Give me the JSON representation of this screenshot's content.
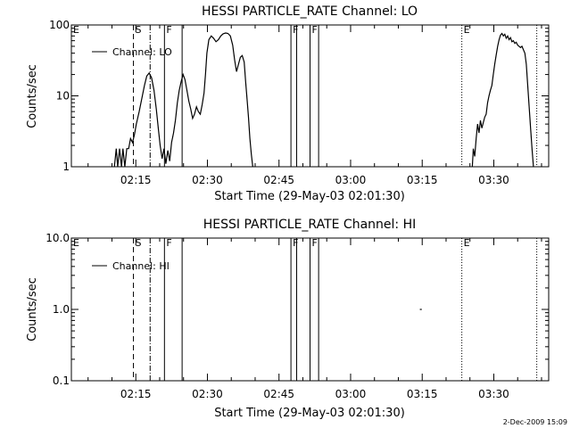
{
  "chart_data": [
    {
      "type": "line",
      "title": "HESSI PARTICLE_RATE Channel: LO",
      "xlabel": "Start Time (29-May-03 02:01:30)",
      "ylabel": "Counts/sec",
      "yscale": "log",
      "ylim": [
        1,
        100
      ],
      "yticks": [
        "1",
        "10",
        "100"
      ],
      "xlim_minutes": [
        0,
        100
      ],
      "xticks": [
        "02:15",
        "02:30",
        "02:45",
        "03:00",
        "03:15",
        "03:30"
      ],
      "legend": "upper-left",
      "series": [
        {
          "name": "Channel: LO",
          "points": [
            [
              9.0,
              1.0
            ],
            [
              9.4,
              1.8
            ],
            [
              9.7,
              1.0
            ],
            [
              10.1,
              1.8
            ],
            [
              10.5,
              1.0
            ],
            [
              10.8,
              1.8
            ],
            [
              11.2,
              1.0
            ],
            [
              11.6,
              1.8
            ],
            [
              12.0,
              1.8
            ],
            [
              12.4,
              2.5
            ],
            [
              12.8,
              2.2
            ],
            [
              13.2,
              2.8
            ],
            [
              13.6,
              4.0
            ],
            [
              14.2,
              6.0
            ],
            [
              14.8,
              9.5
            ],
            [
              15.3,
              14
            ],
            [
              15.8,
              19
            ],
            [
              16.3,
              21
            ],
            [
              16.8,
              18
            ],
            [
              17.3,
              12
            ],
            [
              17.8,
              6.5
            ],
            [
              18.2,
              3.5
            ],
            [
              18.6,
              2.0
            ],
            [
              19.0,
              1.3
            ],
            [
              19.4,
              1.8
            ],
            [
              19.8,
              1.1
            ],
            [
              20.2,
              1.7
            ],
            [
              20.6,
              1.2
            ],
            [
              21.0,
              2.2
            ],
            [
              21.4,
              3.0
            ],
            [
              21.8,
              4.5
            ],
            [
              22.2,
              8.0
            ],
            [
              22.6,
              12
            ],
            [
              23.0,
              16
            ],
            [
              23.4,
              20
            ],
            [
              23.8,
              17
            ],
            [
              24.2,
              12
            ],
            [
              24.6,
              8.5
            ],
            [
              25.0,
              6.5
            ],
            [
              25.4,
              4.8
            ],
            [
              25.8,
              5.5
            ],
            [
              26.2,
              7.0
            ],
            [
              26.6,
              6.0
            ],
            [
              27.0,
              5.5
            ],
            [
              27.4,
              7.5
            ],
            [
              27.8,
              11
            ],
            [
              28.1,
              20
            ],
            [
              28.4,
              40
            ],
            [
              28.8,
              62
            ],
            [
              29.3,
              70
            ],
            [
              29.8,
              65
            ],
            [
              30.3,
              58
            ],
            [
              30.8,
              62
            ],
            [
              31.3,
              70
            ],
            [
              31.8,
              75
            ],
            [
              32.3,
              77
            ],
            [
              32.8,
              76
            ],
            [
              33.3,
              70
            ],
            [
              33.8,
              52
            ],
            [
              34.2,
              32
            ],
            [
              34.6,
              22
            ],
            [
              35.0,
              28
            ],
            [
              35.4,
              35
            ],
            [
              35.8,
              37
            ],
            [
              36.2,
              30
            ],
            [
              36.5,
              16
            ],
            [
              36.8,
              9
            ],
            [
              37.1,
              5
            ],
            [
              37.4,
              2.5
            ],
            [
              37.7,
              1.5
            ],
            [
              38.0,
              1.0
            ],
            [
              84.0,
              1.0
            ],
            [
              84.2,
              1.8
            ],
            [
              84.5,
              1.4
            ],
            [
              84.8,
              2.5
            ],
            [
              85.1,
              4.0
            ],
            [
              85.4,
              3.0
            ],
            [
              85.7,
              4.5
            ],
            [
              86.0,
              3.5
            ],
            [
              86.3,
              4.2
            ],
            [
              86.6,
              5.0
            ],
            [
              86.9,
              5.5
            ],
            [
              87.2,
              8.0
            ],
            [
              87.5,
              10
            ],
            [
              87.8,
              12
            ],
            [
              88.1,
              14
            ],
            [
              88.4,
              20
            ],
            [
              88.7,
              28
            ],
            [
              89.0,
              38
            ],
            [
              89.3,
              50
            ],
            [
              89.6,
              62
            ],
            [
              89.9,
              72
            ],
            [
              90.2,
              76
            ],
            [
              90.5,
              70
            ],
            [
              90.8,
              74
            ],
            [
              91.1,
              65
            ],
            [
              91.4,
              70
            ],
            [
              91.7,
              62
            ],
            [
              92.0,
              66
            ],
            [
              92.3,
              58
            ],
            [
              92.6,
              60
            ],
            [
              92.9,
              55
            ],
            [
              93.2,
              57
            ],
            [
              93.5,
              52
            ],
            [
              93.8,
              50
            ],
            [
              94.1,
              48
            ],
            [
              94.4,
              50
            ],
            [
              94.7,
              45
            ],
            [
              95.0,
              40
            ],
            [
              95.3,
              28
            ],
            [
              95.6,
              14
            ],
            [
              95.9,
              7
            ],
            [
              96.2,
              3.5
            ],
            [
              96.5,
              1.8
            ],
            [
              96.8,
              1.0
            ]
          ]
        }
      ]
    },
    {
      "type": "line",
      "title": "HESSI PARTICLE_RATE Channel: HI",
      "xlabel": "Start Time (29-May-03 02:01:30)",
      "ylabel": "Counts/sec",
      "yscale": "log",
      "ylim": [
        0.1,
        10
      ],
      "yticks": [
        "0.1",
        "1.0",
        "10.0"
      ],
      "xlim_minutes": [
        0,
        100
      ],
      "xticks": [
        "02:15",
        "02:30",
        "02:45",
        "03:00",
        "03:15",
        "03:30"
      ],
      "legend": "upper-left",
      "series": [
        {
          "name": "Channel: HI",
          "points": [
            [
              73.0,
              1.0
            ],
            [
              73.4,
              1.0
            ]
          ]
        }
      ]
    }
  ],
  "markers": [
    {
      "label": "E",
      "minute": 0,
      "style": "none"
    },
    {
      "label": "S",
      "minute": 13.0,
      "style": "dashed"
    },
    {
      "label": "",
      "minute": 16.5,
      "style": "dashdot"
    },
    {
      "label": "F",
      "minute": 19.5,
      "style": "solid"
    },
    {
      "label": "",
      "minute": 23.2,
      "style": "solid"
    },
    {
      "label": "F",
      "minute": 46.0,
      "style": "solid"
    },
    {
      "label": "",
      "minute": 47.2,
      "style": "solid"
    },
    {
      "label": "F",
      "minute": 50.0,
      "style": "solid"
    },
    {
      "label": "",
      "minute": 51.8,
      "style": "solid"
    },
    {
      "label": "E",
      "minute": 81.8,
      "style": "dotted"
    },
    {
      "label": "",
      "minute": 97.5,
      "style": "dotted"
    }
  ],
  "footer": {
    "timestamp": "2-Dec-2009 15:09"
  }
}
